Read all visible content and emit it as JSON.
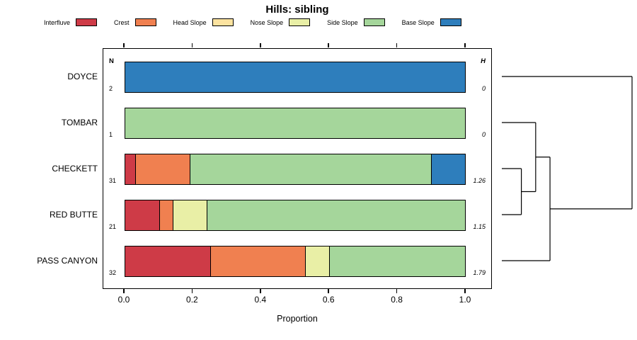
{
  "chart_data": {
    "type": "bar",
    "variant": "horizontal-stacked-with-dendrogram",
    "title": "Hills: sibling",
    "xlabel": "Proportion",
    "xlim": [
      0,
      1
    ],
    "x_ticks": [
      0.0,
      0.2,
      0.4,
      0.6,
      0.8,
      1.0
    ],
    "x_tick_labels": [
      "0.0",
      "0.2",
      "0.4",
      "0.6",
      "0.8",
      "1.0"
    ],
    "columns": {
      "n_header": "N",
      "h_header": "H"
    },
    "legend": [
      {
        "label": "Interfluve",
        "color": "#ce3b47"
      },
      {
        "label": "Crest",
        "color": "#f08050"
      },
      {
        "label": "Head Slope",
        "color": "#fce3a0"
      },
      {
        "label": "Nose Slope",
        "color": "#e9efa6"
      },
      {
        "label": "Side Slope",
        "color": "#a5d69b"
      },
      {
        "label": "Base Slope",
        "color": "#2e7ebc"
      }
    ],
    "rows": [
      {
        "label": "DOYCE",
        "n": "2",
        "h": "0",
        "segments": [
          {
            "class": "Base Slope",
            "value": 1.0
          }
        ]
      },
      {
        "label": "TOMBAR",
        "n": "1",
        "h": "0",
        "segments": [
          {
            "class": "Side Slope",
            "value": 1.0
          }
        ]
      },
      {
        "label": "CHECKETT",
        "n": "31",
        "h": "1.26",
        "segments": [
          {
            "class": "Interfluve",
            "value": 0.03
          },
          {
            "class": "Crest",
            "value": 0.16
          },
          {
            "class": "Side Slope",
            "value": 0.71
          },
          {
            "class": "Base Slope",
            "value": 0.1
          }
        ]
      },
      {
        "label": "RED BUTTE",
        "n": "21",
        "h": "1.15",
        "segments": [
          {
            "class": "Interfluve",
            "value": 0.1
          },
          {
            "class": "Crest",
            "value": 0.04
          },
          {
            "class": "Nose Slope",
            "value": 0.1
          },
          {
            "class": "Side Slope",
            "value": 0.76
          }
        ]
      },
      {
        "label": "PASS CANYON",
        "n": "32",
        "h": "1.79",
        "segments": [
          {
            "class": "Interfluve",
            "value": 0.25
          },
          {
            "class": "Crest",
            "value": 0.28
          },
          {
            "class": "Nose Slope",
            "value": 0.07
          },
          {
            "class": "Side Slope",
            "value": 0.4
          }
        ]
      }
    ],
    "dendrogram": {
      "merges": [
        {
          "name": "merge0",
          "children": [
            "CHECKETT",
            "RED BUTTE"
          ],
          "height": 0.15
        },
        {
          "name": "merge1",
          "children": [
            "TOMBAR",
            "merge0"
          ],
          "height": 0.26
        },
        {
          "name": "merge2",
          "children": [
            "merge1",
            "PASS CANYON"
          ],
          "height": 0.37
        },
        {
          "name": "merge3",
          "children": [
            "merge2",
            "DOYCE"
          ],
          "height": 1.0
        }
      ]
    }
  }
}
